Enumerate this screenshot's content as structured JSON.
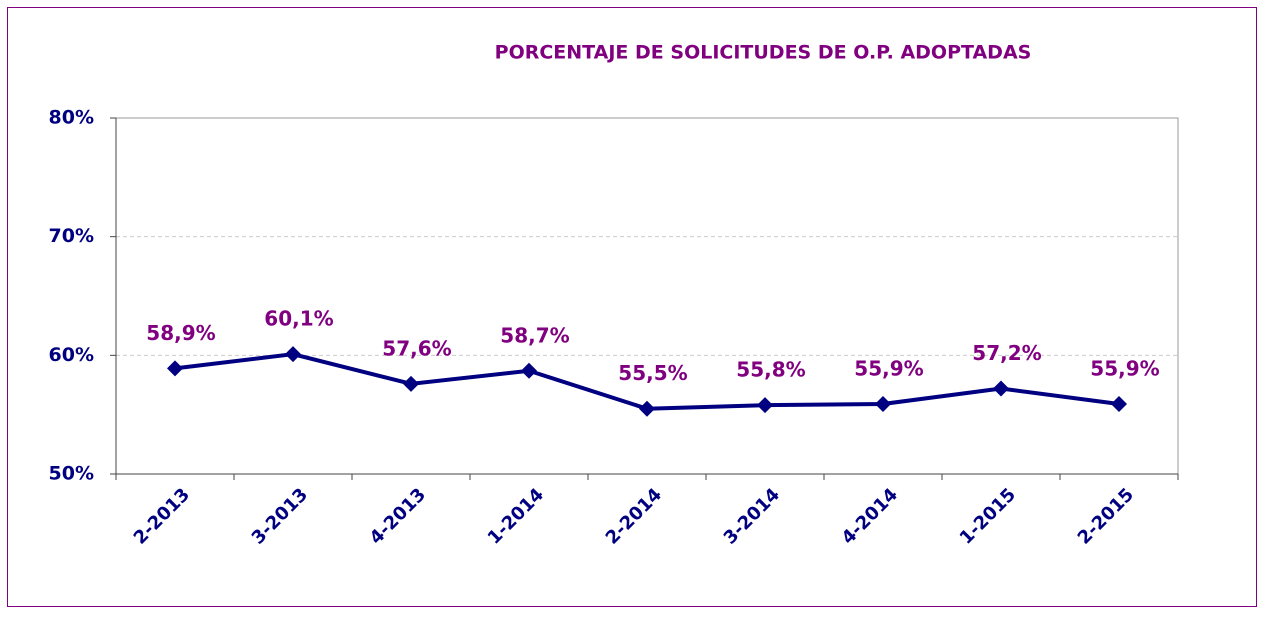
{
  "chart_data": {
    "type": "line",
    "title": "PORCENTAJE DE SOLICITUDES DE O.P. ADOPTADAS",
    "categories": [
      "2-2013",
      "3-2013",
      "4-2013",
      "1-2014",
      "2-2014",
      "3-2014",
      "4-2014",
      "1-2015",
      "2-2015"
    ],
    "series": [
      {
        "name": "Porcentaje",
        "color": "#000080",
        "values": [
          58.9,
          60.1,
          57.6,
          58.7,
          55.5,
          55.8,
          55.9,
          57.2,
          55.9
        ],
        "value_labels": [
          "58,9%",
          "60,1%",
          "57,6%",
          "58,7%",
          "55,5%",
          "55,8%",
          "55,9%",
          "57,2%",
          "55,9%"
        ]
      }
    ],
    "ylim": [
      50,
      80
    ],
    "yticks": [
      {
        "value": 50,
        "label": "50%"
      },
      {
        "value": 60,
        "label": "60%"
      },
      {
        "value": 70,
        "label": "70%"
      },
      {
        "value": 80,
        "label": "80%"
      }
    ],
    "grid": true
  }
}
